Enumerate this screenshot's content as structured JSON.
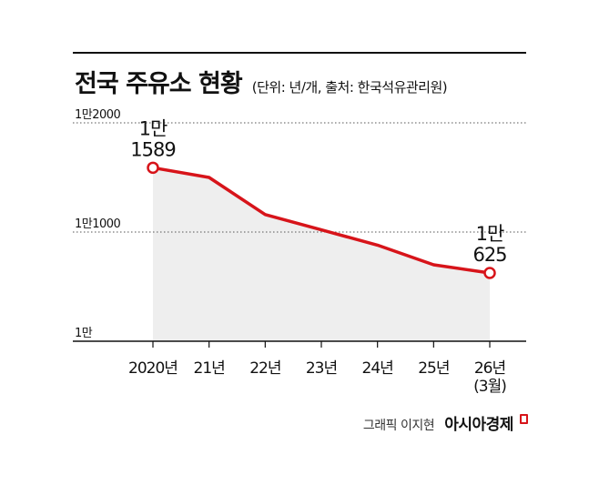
{
  "header": {
    "title": "전국 주유소 현황",
    "subtitle": "(단위: 년/개, 출처: 한국석유관리원)"
  },
  "credit": {
    "graphic": "그래픽 이지현",
    "brand": "아시아경제"
  },
  "colors": {
    "line": "#d7141a",
    "area": "#eeeeee",
    "grid": "#555555",
    "axis": "#111111"
  },
  "chart_data": {
    "type": "line",
    "categories": [
      "2020년",
      "21년",
      "22년",
      "23년",
      "24년",
      "25년",
      "26년 (3월)"
    ],
    "category_lines": [
      [
        "2020년"
      ],
      [
        "21년"
      ],
      [
        "22년"
      ],
      [
        "23년"
      ],
      [
        "24년"
      ],
      [
        "25년"
      ],
      [
        "26년",
        "(3월)"
      ]
    ],
    "values": [
      11589,
      11500,
      11160,
      11020,
      10880,
      10700,
      10625
    ],
    "ylim": [
      10000,
      12000
    ],
    "yticks": [
      {
        "value": 12000,
        "label": "1만2000"
      },
      {
        "value": 11000,
        "label": "1만1000"
      },
      {
        "value": 10000,
        "label": "1만"
      }
    ],
    "annotations": [
      {
        "index": 0,
        "lines": [
          "1만",
          "1589"
        ]
      },
      {
        "index": 6,
        "lines": [
          "1만",
          "625"
        ]
      }
    ],
    "grid": true,
    "area_fill": true
  }
}
